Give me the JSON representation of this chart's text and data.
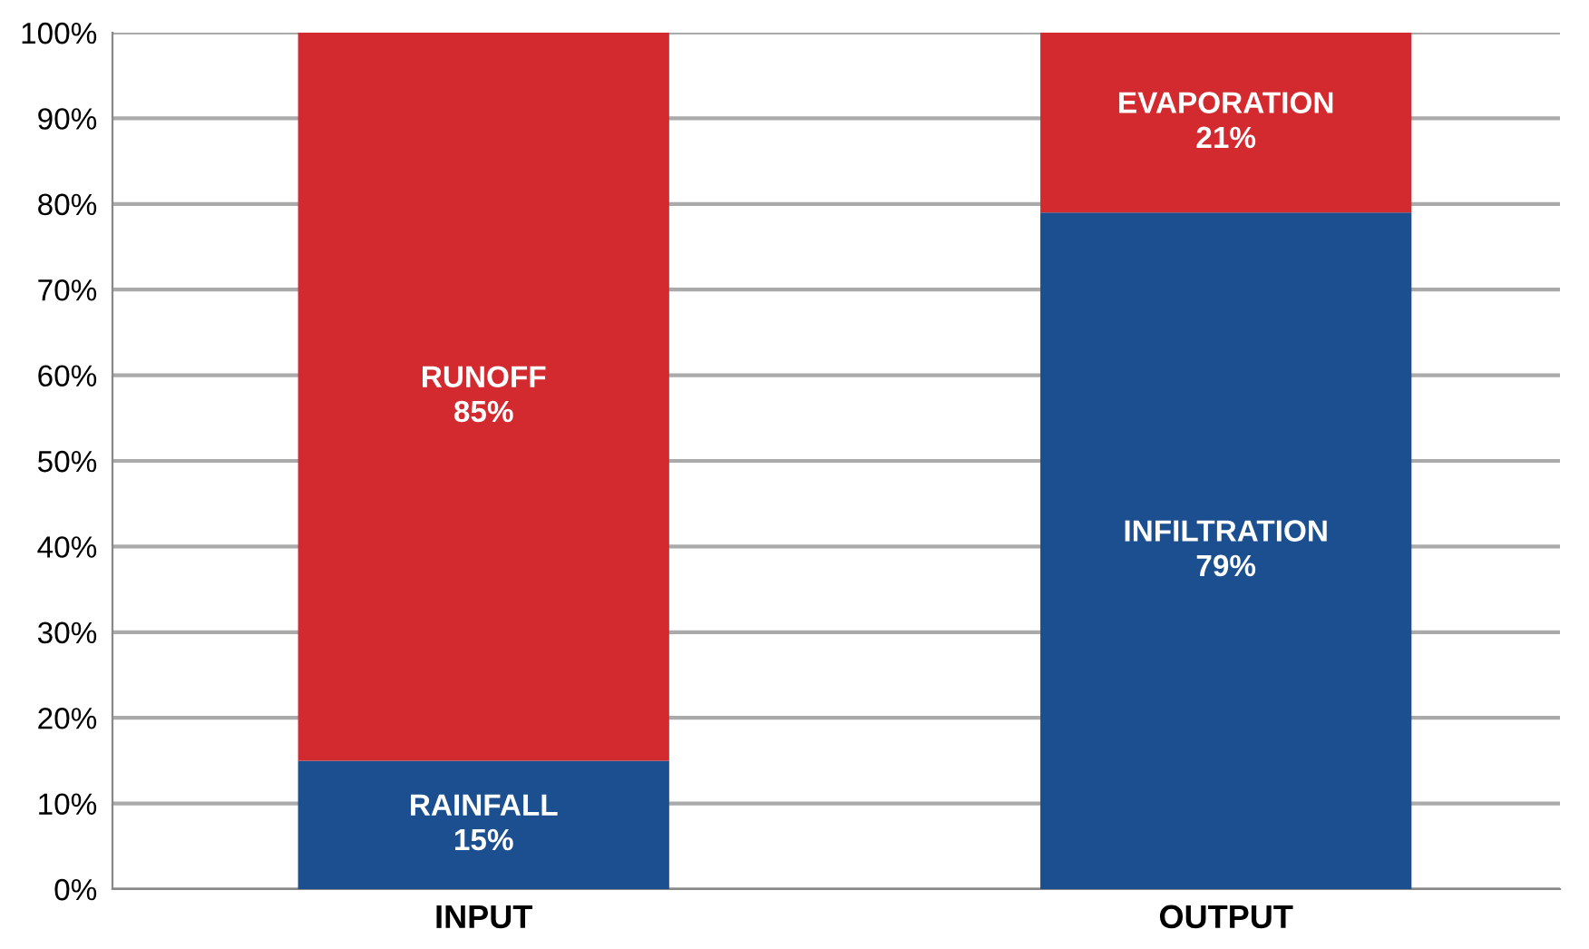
{
  "chart_data": {
    "type": "bar",
    "stacked": true,
    "categories": [
      "INPUT",
      "OUTPUT"
    ],
    "series": [
      {
        "color": "#1c4f8f",
        "values": [
          15,
          79
        ],
        "value_labels": [
          "RAINFALL\n15%",
          "INFILTRATION\n79%"
        ]
      },
      {
        "color": "#d32a2f",
        "values": [
          85,
          21
        ],
        "value_labels": [
          "RUNOFF\n85%",
          "EVAPORATION\n21%"
        ]
      }
    ],
    "ylim": [
      0,
      100
    ],
    "yticks": [
      {
        "value": 0,
        "label": "0%"
      },
      {
        "value": 10,
        "label": "10%"
      },
      {
        "value": 20,
        "label": "20%"
      },
      {
        "value": 30,
        "label": "30%"
      },
      {
        "value": 40,
        "label": "40%"
      },
      {
        "value": 50,
        "label": "50%"
      },
      {
        "value": 60,
        "label": "60%"
      },
      {
        "value": 70,
        "label": "70%"
      },
      {
        "value": 80,
        "label": "80%"
      },
      {
        "value": 90,
        "label": "90%"
      },
      {
        "value": 100,
        "label": "100%"
      }
    ],
    "grid": "y",
    "legend": false
  }
}
